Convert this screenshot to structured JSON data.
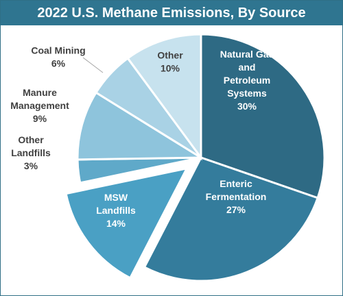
{
  "chart_data": {
    "type": "pie",
    "title": "2022 U.S. Methane Emissions, By Source",
    "slices": [
      {
        "name": "Natural Gas and Petroleum Systems",
        "lines": [
          "Natural Gas",
          "and",
          "Petroleum",
          "Systems"
        ],
        "value_label": "30%",
        "value": 30,
        "color": "#2e6a84",
        "text_color": "#ffffff"
      },
      {
        "name": "Enteric Fermentation",
        "lines": [
          "Enteric",
          "Fermentation"
        ],
        "value_label": "27%",
        "value": 27,
        "color": "#347c9c",
        "text_color": "#ffffff"
      },
      {
        "name": "MSW Landfills",
        "lines": [
          "MSW",
          "Landfills"
        ],
        "value_label": "14%",
        "value": 14,
        "color": "#4aa0c4",
        "text_color": "#ffffff"
      },
      {
        "name": "Other Landfills",
        "lines": [
          "Other",
          "Landfills"
        ],
        "value_label": "3%",
        "value": 3,
        "color": "#5fa9c9",
        "text_color": "#404040"
      },
      {
        "name": "Manure Management",
        "lines": [
          "Manure",
          "Management"
        ],
        "value_label": "9%",
        "value": 9,
        "color": "#8ec4dc",
        "text_color": "#404040"
      },
      {
        "name": "Coal Mining",
        "lines": [
          "Coal Mining"
        ],
        "value_label": "6%",
        "value": 6,
        "color": "#a9d2e5",
        "text_color": "#404040"
      },
      {
        "name": "Other",
        "lines": [
          "Other"
        ],
        "value_label": "10%",
        "value": 10,
        "color": "#c7e2ee",
        "text_color": "#404040"
      }
    ],
    "exploded": "MSW Landfills"
  }
}
